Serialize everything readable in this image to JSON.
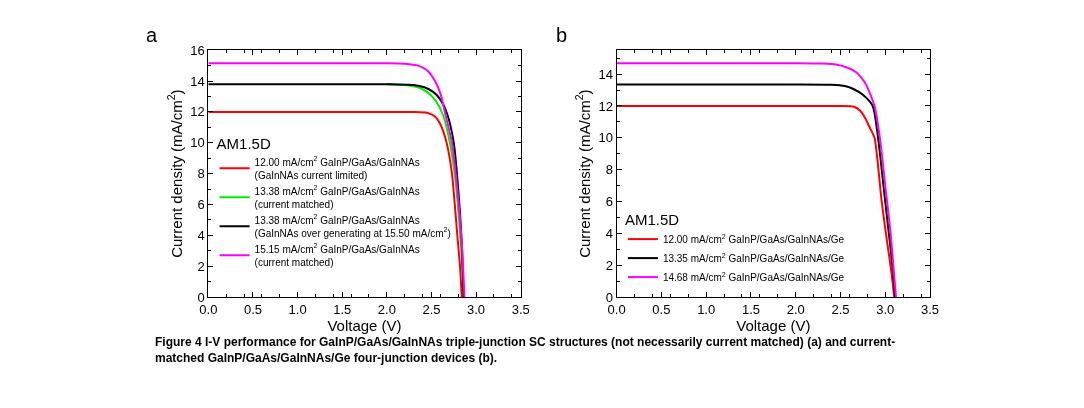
{
  "chart_data": [
    {
      "type": "line",
      "title": "a",
      "annotations": [
        "Figure 4 I-V performance for GaInP/GaAs/GaInNAs triple-junction SC structures (not necessarily current matched) (a) and current-\nmatched GaInP/GaAs/GaInNAs/Ge four-junction devices (b)."
      ],
      "xlabel": "Voltage (V)",
      "ylabel": "Current density (mA/cm$^{2}$)",
      "legend_title": "AM1.5D",
      "legend": "left",
      "grid": false,
      "marker": "none",
      "line_style": "solid",
      "xlim": [
        0,
        3.5
      ],
      "xticks": [
        {
          "value": 0,
          "label": "0.0"
        },
        0.5,
        {
          "value": 1,
          "label": "1.0"
        },
        1.5,
        {
          "value": 2,
          "label": "2.0"
        },
        2.5,
        {
          "value": 3,
          "label": "3.0"
        },
        3.5
      ],
      "ylim": [
        0,
        16
      ],
      "yticks": [
        0,
        2,
        4,
        6,
        8,
        10,
        12,
        14,
        16
      ],
      "series": [
        {
          "name": "12.00 mA/cm$^{2}$ GaInP/GaAs/GaInNAs\n(GaInNAs current limited)",
          "color": "#ff0000",
          "x": [
            0,
            0.5,
            1,
            1.5,
            2,
            2.3,
            2.45,
            2.54,
            2.6,
            2.67,
            2.73,
            2.79,
            2.82,
            2.84
          ],
          "values": [
            12,
            12,
            12,
            12,
            12,
            12,
            11.95,
            11.7,
            11.2,
            10,
            8,
            4,
            2,
            0
          ]
        },
        {
          "name": "13.38 mA/cm$^{2}$ GaInP/GaAs/GaInNAs\n(current matched)",
          "color": "#00ee00",
          "x": [
            2,
            2.2,
            2.35,
            2.45,
            2.55,
            2.63,
            2.7,
            2.76,
            2.81,
            2.84,
            2.86
          ],
          "values": [
            13.8,
            13.75,
            13.6,
            13.3,
            12.7,
            11.8,
            10.2,
            8,
            5,
            2.5,
            0
          ]
        },
        {
          "name": "13.38 mA/cm$^{2}$ GaInP/GaAs/GaInNAs\n(GaInNAs over generating at 15.50 mA/cm$^{2}$)",
          "color": "#000000",
          "x": [
            0,
            0.5,
            1,
            1.5,
            2,
            2.3,
            2.42,
            2.52,
            2.6,
            2.68,
            2.75,
            2.8,
            2.84,
            2.86
          ],
          "values": [
            13.8,
            13.8,
            13.8,
            13.8,
            13.8,
            13.75,
            13.6,
            13.3,
            12.8,
            11.8,
            10,
            7,
            3.5,
            0
          ]
        },
        {
          "name": "15.15 mA/cm$^{2}$ GaInP/GaAs/GaInNAs\n(current matched)",
          "color": "#ff00ff",
          "x": [
            0,
            0.5,
            1,
            1.5,
            2,
            2.2,
            2.35,
            2.45,
            2.54,
            2.6,
            2.65,
            2.73,
            2.79,
            2.84,
            2.87
          ],
          "values": [
            15.15,
            15.15,
            15.15,
            15.15,
            15.15,
            15.12,
            15,
            14.7,
            14,
            13.2,
            12,
            10,
            7,
            3.5,
            0
          ]
        }
      ]
    },
    {
      "type": "line",
      "title": "b",
      "xlabel": "Voltage (V)",
      "ylabel": "Current density (mA/cm$^{2}$)",
      "legend_title": "AM1.5D",
      "legend": "bottom left",
      "grid": false,
      "marker": "none",
      "line_style": "solid",
      "xlim": [
        0,
        3.5
      ],
      "xticks": [
        {
          "value": 0,
          "label": "0.0"
        },
        0.5,
        {
          "value": 1,
          "label": "1.0"
        },
        1.5,
        {
          "value": 2,
          "label": "2.0"
        },
        2.5,
        {
          "value": 3,
          "label": "3.0"
        },
        3.5
      ],
      "ylim": [
        0,
        15.5
      ],
      "yticks": [
        0,
        2,
        4,
        6,
        8,
        10,
        12,
        14
      ],
      "series": [
        {
          "name": "12.00 mA/cm$^{2}$ GaInP/GaAs/GaInNAs/Ge",
          "color": "#ff0000",
          "x": [
            0,
            0.5,
            1,
            1.5,
            2,
            2.5,
            2.65,
            2.72,
            2.78,
            2.83,
            2.88,
            2.96,
            3.02,
            3.07,
            3.1
          ],
          "values": [
            12,
            12,
            12,
            12,
            12,
            12,
            11.95,
            11.7,
            11.2,
            10.6,
            10,
            6,
            3.5,
            1.5,
            0
          ]
        },
        {
          "name": "13.35 mA/cm$^{2}$ GaInP/GaAs/GaInNAs/Ge",
          "color": "#000000",
          "x": [
            0,
            0.5,
            1,
            1.5,
            2,
            2.4,
            2.55,
            2.65,
            2.75,
            2.86,
            2.92,
            2.98,
            3.04,
            3.08,
            3.11
          ],
          "values": [
            13.35,
            13.35,
            13.35,
            13.35,
            13.35,
            13.33,
            13.25,
            13.05,
            12.7,
            12,
            10,
            7,
            4,
            2,
            0
          ]
        },
        {
          "name": "14.68 mA/cm$^{2}$ GaInP/GaAs/GaInNAs/Ge",
          "color": "#ff00ff",
          "x": [
            0,
            0.5,
            1,
            1.5,
            2,
            2.3,
            2.45,
            2.58,
            2.68,
            2.78,
            2.88,
            2.94,
            3.0,
            3.06,
            3.09,
            3.12
          ],
          "values": [
            14.68,
            14.68,
            14.68,
            14.68,
            14.68,
            14.66,
            14.6,
            14.4,
            14.1,
            13.4,
            12,
            10,
            7,
            4,
            2,
            0
          ]
        }
      ]
    }
  ]
}
